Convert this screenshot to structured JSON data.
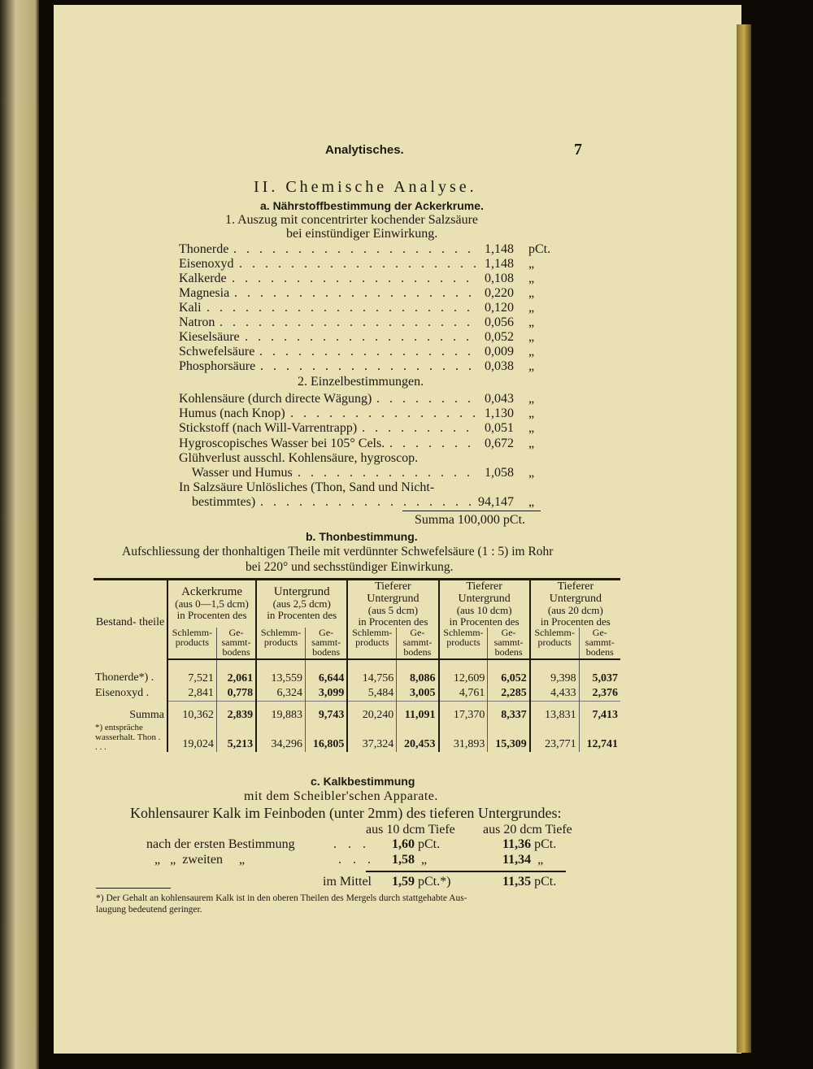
{
  "header": {
    "title": "Analytisches.",
    "page_number": "7"
  },
  "section_title": "II. Chemische Analyse.",
  "a": {
    "heading": "a. Nährstoffbestimmung der Ackerkrume.",
    "sub1": "1. Auszug mit concentrirter kochender Salzsäure",
    "sub1b": "bei einstündiger Einwirkung.",
    "items1": [
      {
        "label": "Thonerde",
        "value": "1,148",
        "unit": "pCt."
      },
      {
        "label": "Eisenoxyd",
        "value": "1,148",
        "unit": "„"
      },
      {
        "label": "Kalkerde",
        "value": "0,108",
        "unit": "„"
      },
      {
        "label": "Magnesia",
        "value": "0,220",
        "unit": "„"
      },
      {
        "label": "Kali",
        "value": "0,120",
        "unit": "„"
      },
      {
        "label": "Natron",
        "value": "0,056",
        "unit": "„"
      },
      {
        "label": "Kieselsäure",
        "value": "0,052",
        "unit": "„"
      },
      {
        "label": "Schwefelsäure",
        "value": "0,009",
        "unit": "„"
      },
      {
        "label": "Phosphorsäure",
        "value": "0,038",
        "unit": "„"
      }
    ],
    "sub2": "2. Einzelbestimmungen.",
    "items2": [
      {
        "label": "Kohlensäure (durch directe Wägung)",
        "value": "0,043",
        "unit": "„"
      },
      {
        "label": "Humus (nach Knop)",
        "value": "1,130",
        "unit": "„"
      },
      {
        "label": "Stickstoff (nach Will-Varrentrapp)",
        "value": "0,051",
        "unit": "„"
      },
      {
        "label": "Hygroscopisches Wasser bei 105° Cels.",
        "value": "0,672",
        "unit": "„"
      },
      {
        "label": "Glühverlust ausschl. Kohlensäure, hygroscop.",
        "value": "",
        "unit": ""
      },
      {
        "label": "    Wasser und Humus",
        "value": "1,058",
        "unit": "„"
      },
      {
        "label": "In Salzsäure Unlösliches (Thon, Sand und Nicht-",
        "value": "",
        "unit": ""
      },
      {
        "label": "    bestimmtes)",
        "value": "94,147",
        "unit": "„"
      }
    ],
    "summa": "Summa 100,000 pCt."
  },
  "b": {
    "heading": "b. Thonbestimmung.",
    "line1": "Aufschliessung der thonhaltigen Theile mit verdünnter Schwefelsäure (1 : 5) im Rohr",
    "line2": "bei 220° und sechsstündiger Einwirkung.",
    "table": {
      "col0": "Bestand- theile",
      "groups": [
        {
          "title": "Ackerkrume",
          "depth": "(aus 0—1,5 dcm)",
          "pct": "in Procenten des"
        },
        {
          "title": "Untergrund",
          "depth": "(aus 2,5 dcm)",
          "pct": "in Procenten des"
        },
        {
          "title": "Tieferer Untergrund",
          "depth": "(aus 5 dcm)",
          "pct": "in Procenten des"
        },
        {
          "title": "Tieferer Untergrund",
          "depth": "(aus 10 dcm)",
          "pct": "in Procenten des"
        },
        {
          "title": "Tieferer Untergrund",
          "depth": "(aus 20 dcm)",
          "pct": "in Procenten des"
        }
      ],
      "subcols": [
        "Schlemm- products",
        "Ge- sammt- bodens"
      ],
      "rows": [
        {
          "label": "Thonerde*) .",
          "values": [
            "7,521",
            "2,061",
            "13,559",
            "6,644",
            "14,756",
            "8,086",
            "12,609",
            "6,052",
            "9,398",
            "5,037"
          ]
        },
        {
          "label": "Eisenoxyd .",
          "values": [
            "2,841",
            "0,778",
            "6,324",
            "3,099",
            "5,484",
            "3,005",
            "4,761",
            "2,285",
            "4,433",
            "2,376"
          ]
        },
        {
          "label": "Summa",
          "values": [
            "10,362",
            "2,839",
            "19,883",
            "9,743",
            "20,240",
            "11,091",
            "17,370",
            "8,337",
            "13,831",
            "7,413"
          ]
        },
        {
          "label": "*) entspräche wasserhalt. Thon . . . .",
          "values": [
            "19,024",
            "5,213",
            "34,296",
            "16,805",
            "37,324",
            "20,453",
            "31,893",
            "15,309",
            "23,771",
            "12,741"
          ]
        }
      ]
    }
  },
  "c": {
    "heading": "c. Kalkbestimmung",
    "line1": "mit dem Scheibler'schen Apparate.",
    "line2": "Kohlensaurer Kalk im Feinboden (unter 2mm) des tieferen Untergrundes:",
    "col1": "aus 10 dcm Tiefe",
    "col2": "aus 20 dcm Tiefe",
    "r1": {
      "label": "nach der ersten Bestimmung",
      "v1": "1,60",
      "u1": "pCt.",
      "v2": "11,36",
      "u2": "pCt."
    },
    "r2": {
      "label": "„   „  zweiten     „",
      "v1": "1,58",
      "u1": "„",
      "v2": "11,34",
      "u2": "„"
    },
    "mean": {
      "label": "im Mittel",
      "v1": "1,59",
      "u1": "pCt.*)",
      "v2": "11,35",
      "u2": "pCt."
    },
    "footnote": "*) Der Gehalt an kohlensaurem Kalk ist in den oberen Theilen des Mergels durch stattgehabte Aus-",
    "footnote2": "laugung bedeutend geringer."
  }
}
